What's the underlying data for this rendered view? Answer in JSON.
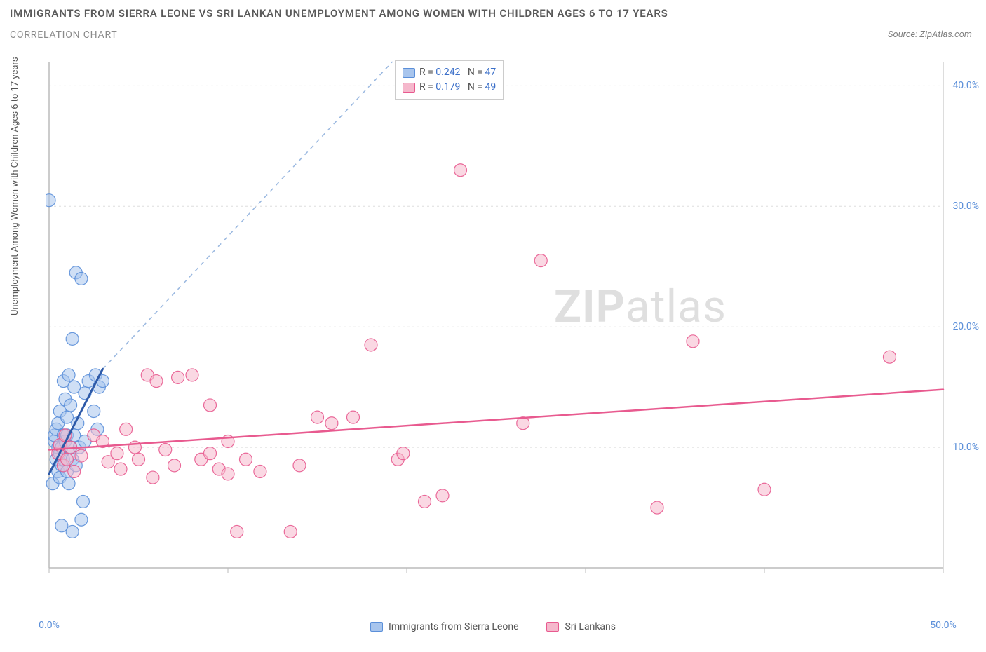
{
  "title": "IMMIGRANTS FROM SIERRA LEONE VS SRI LANKAN UNEMPLOYMENT AMONG WOMEN WITH CHILDREN AGES 6 TO 17 YEARS",
  "subtitle": "CORRELATION CHART",
  "source": "Source: ZipAtlas.com",
  "y_axis_label": "Unemployment Among Women with Children Ages 6 to 17 years",
  "watermark_zip": "ZIP",
  "watermark_atlas": "atlas",
  "chart": {
    "type": "scatter",
    "background_color": "#ffffff",
    "grid_color": "#dddddd",
    "axis_color": "#bbbbbb",
    "label_color": "#5b8fd9",
    "xlim": [
      0,
      50
    ],
    "ylim": [
      0,
      42
    ],
    "x_ticks": [
      0,
      10,
      20,
      30,
      40,
      50
    ],
    "x_tick_labels": [
      "0.0%",
      "",
      "",
      "",
      "",
      "50.0%"
    ],
    "y_ticks": [
      10,
      20,
      30,
      40
    ],
    "y_tick_labels": [
      "10.0%",
      "20.0%",
      "30.0%",
      "40.0%"
    ],
    "series": [
      {
        "name": "Immigrants from Sierra Leone",
        "legend_name": "Immigrants from Sierra Leone",
        "marker_fill": "#a8c5ed",
        "marker_stroke": "#5b8fd9",
        "marker_opacity": 0.55,
        "marker_radius": 9,
        "R": "0.242",
        "N": "47",
        "trend_solid": {
          "x1": 0,
          "y1": 7.8,
          "x2": 3.0,
          "y2": 16.5,
          "color": "#2e5aa8",
          "width": 3
        },
        "trend_dash": {
          "x1": 3.0,
          "y1": 16.5,
          "x2": 19.2,
          "y2": 42.0,
          "color": "#9ab8e0",
          "width": 1.5
        },
        "points": [
          [
            0.0,
            30.5
          ],
          [
            0.2,
            7.0
          ],
          [
            0.3,
            10.5
          ],
          [
            0.3,
            11.0
          ],
          [
            0.4,
            9.0
          ],
          [
            0.4,
            11.5
          ],
          [
            0.5,
            8.0
          ],
          [
            0.5,
            12.0
          ],
          [
            0.5,
            10.0
          ],
          [
            0.6,
            9.5
          ],
          [
            0.6,
            13.0
          ],
          [
            0.6,
            7.5
          ],
          [
            0.7,
            10.0
          ],
          [
            0.7,
            8.5
          ],
          [
            0.8,
            11.0
          ],
          [
            0.8,
            15.5
          ],
          [
            0.8,
            9.0
          ],
          [
            0.9,
            10.5
          ],
          [
            0.9,
            14.0
          ],
          [
            1.0,
            8.0
          ],
          [
            1.0,
            12.5
          ],
          [
            1.0,
            11.0
          ],
          [
            1.1,
            7.0
          ],
          [
            1.1,
            16.0
          ],
          [
            1.2,
            10.0
          ],
          [
            1.2,
            13.5
          ],
          [
            1.3,
            9.0
          ],
          [
            1.3,
            19.0
          ],
          [
            1.4,
            15.0
          ],
          [
            1.4,
            11.0
          ],
          [
            1.5,
            24.5
          ],
          [
            1.5,
            8.5
          ],
          [
            1.6,
            12.0
          ],
          [
            1.7,
            10.0
          ],
          [
            1.8,
            24.0
          ],
          [
            1.8,
            4.0
          ],
          [
            1.9,
            5.5
          ],
          [
            2.0,
            14.5
          ],
          [
            2.0,
            10.5
          ],
          [
            2.2,
            15.5
          ],
          [
            2.5,
            13.0
          ],
          [
            2.6,
            16.0
          ],
          [
            2.7,
            11.5
          ],
          [
            2.8,
            15.0
          ],
          [
            3.0,
            15.5
          ],
          [
            0.7,
            3.5
          ],
          [
            1.3,
            3.0
          ]
        ]
      },
      {
        "name": "Sri Lankans",
        "legend_name": "Sri Lankans",
        "marker_fill": "#f5b8cc",
        "marker_stroke": "#e85a8f",
        "marker_opacity": 0.55,
        "marker_radius": 9,
        "R": "0.179",
        "N": "49",
        "trend_solid": {
          "x1": 0,
          "y1": 9.8,
          "x2": 50,
          "y2": 14.8,
          "color": "#e85a8f",
          "width": 2.5
        },
        "points": [
          [
            0.5,
            9.5
          ],
          [
            0.6,
            10.2
          ],
          [
            0.8,
            8.5
          ],
          [
            0.9,
            11.0
          ],
          [
            1.0,
            9.0
          ],
          [
            1.2,
            10.0
          ],
          [
            1.4,
            8.0
          ],
          [
            1.8,
            9.3
          ],
          [
            2.5,
            11.0
          ],
          [
            3.0,
            10.5
          ],
          [
            3.3,
            8.8
          ],
          [
            3.8,
            9.5
          ],
          [
            4.0,
            8.2
          ],
          [
            4.3,
            11.5
          ],
          [
            4.8,
            10.0
          ],
          [
            5.0,
            9.0
          ],
          [
            5.5,
            16.0
          ],
          [
            5.8,
            7.5
          ],
          [
            6.0,
            15.5
          ],
          [
            6.5,
            9.8
          ],
          [
            7.0,
            8.5
          ],
          [
            7.2,
            15.8
          ],
          [
            8.0,
            16.0
          ],
          [
            8.5,
            9.0
          ],
          [
            9.0,
            13.5
          ],
          [
            9.0,
            9.5
          ],
          [
            9.5,
            8.2
          ],
          [
            10.0,
            10.5
          ],
          [
            10.0,
            7.8
          ],
          [
            10.5,
            3.0
          ],
          [
            11.0,
            9.0
          ],
          [
            11.8,
            8.0
          ],
          [
            13.5,
            3.0
          ],
          [
            14.0,
            8.5
          ],
          [
            15.0,
            12.5
          ],
          [
            15.8,
            12.0
          ],
          [
            17.0,
            12.5
          ],
          [
            18.0,
            18.5
          ],
          [
            19.5,
            9.0
          ],
          [
            19.8,
            9.5
          ],
          [
            21.0,
            5.5
          ],
          [
            22.0,
            6.0
          ],
          [
            23.0,
            33.0
          ],
          [
            26.5,
            12.0
          ],
          [
            27.5,
            25.5
          ],
          [
            34.0,
            5.0
          ],
          [
            36.0,
            18.8
          ],
          [
            40.0,
            6.5
          ],
          [
            47.0,
            17.5
          ]
        ]
      }
    ]
  }
}
